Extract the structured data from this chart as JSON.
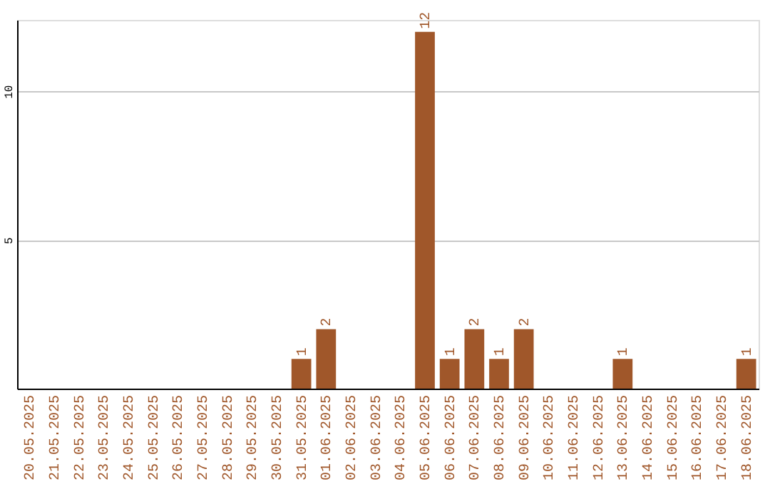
{
  "chart_data": {
    "type": "bar",
    "categories": [
      "20.05.2025",
      "21.05.2025",
      "22.05.2025",
      "23.05.2025",
      "24.05.2025",
      "25.05.2025",
      "26.05.2025",
      "27.05.2025",
      "28.05.2025",
      "29.05.2025",
      "30.05.2025",
      "31.05.2025",
      "01.06.2025",
      "02.06.2025",
      "03.06.2025",
      "04.06.2025",
      "05.06.2025",
      "06.06.2025",
      "07.06.2025",
      "08.06.2025",
      "09.06.2025",
      "10.06.2025",
      "11.06.2025",
      "12.06.2025",
      "13.06.2025",
      "14.06.2025",
      "15.06.2025",
      "16.06.2025",
      "17.06.2025",
      "18.06.2025"
    ],
    "values": [
      0,
      0,
      0,
      0,
      0,
      0,
      0,
      0,
      0,
      0,
      0,
      1,
      2,
      0,
      0,
      0,
      12,
      1,
      2,
      1,
      2,
      0,
      0,
      0,
      1,
      0,
      0,
      0,
      0,
      1
    ],
    "value_labels": [
      null,
      null,
      null,
      null,
      null,
      null,
      null,
      null,
      null,
      null,
      null,
      "1",
      "2",
      null,
      null,
      null,
      "12",
      "1",
      "2",
      "1",
      "2",
      null,
      null,
      null,
      "1",
      null,
      null,
      null,
      null,
      "1"
    ],
    "color": "#a0572a",
    "ylim": [
      0,
      12.4
    ],
    "yticks": [
      5,
      10
    ],
    "grid": "y"
  }
}
